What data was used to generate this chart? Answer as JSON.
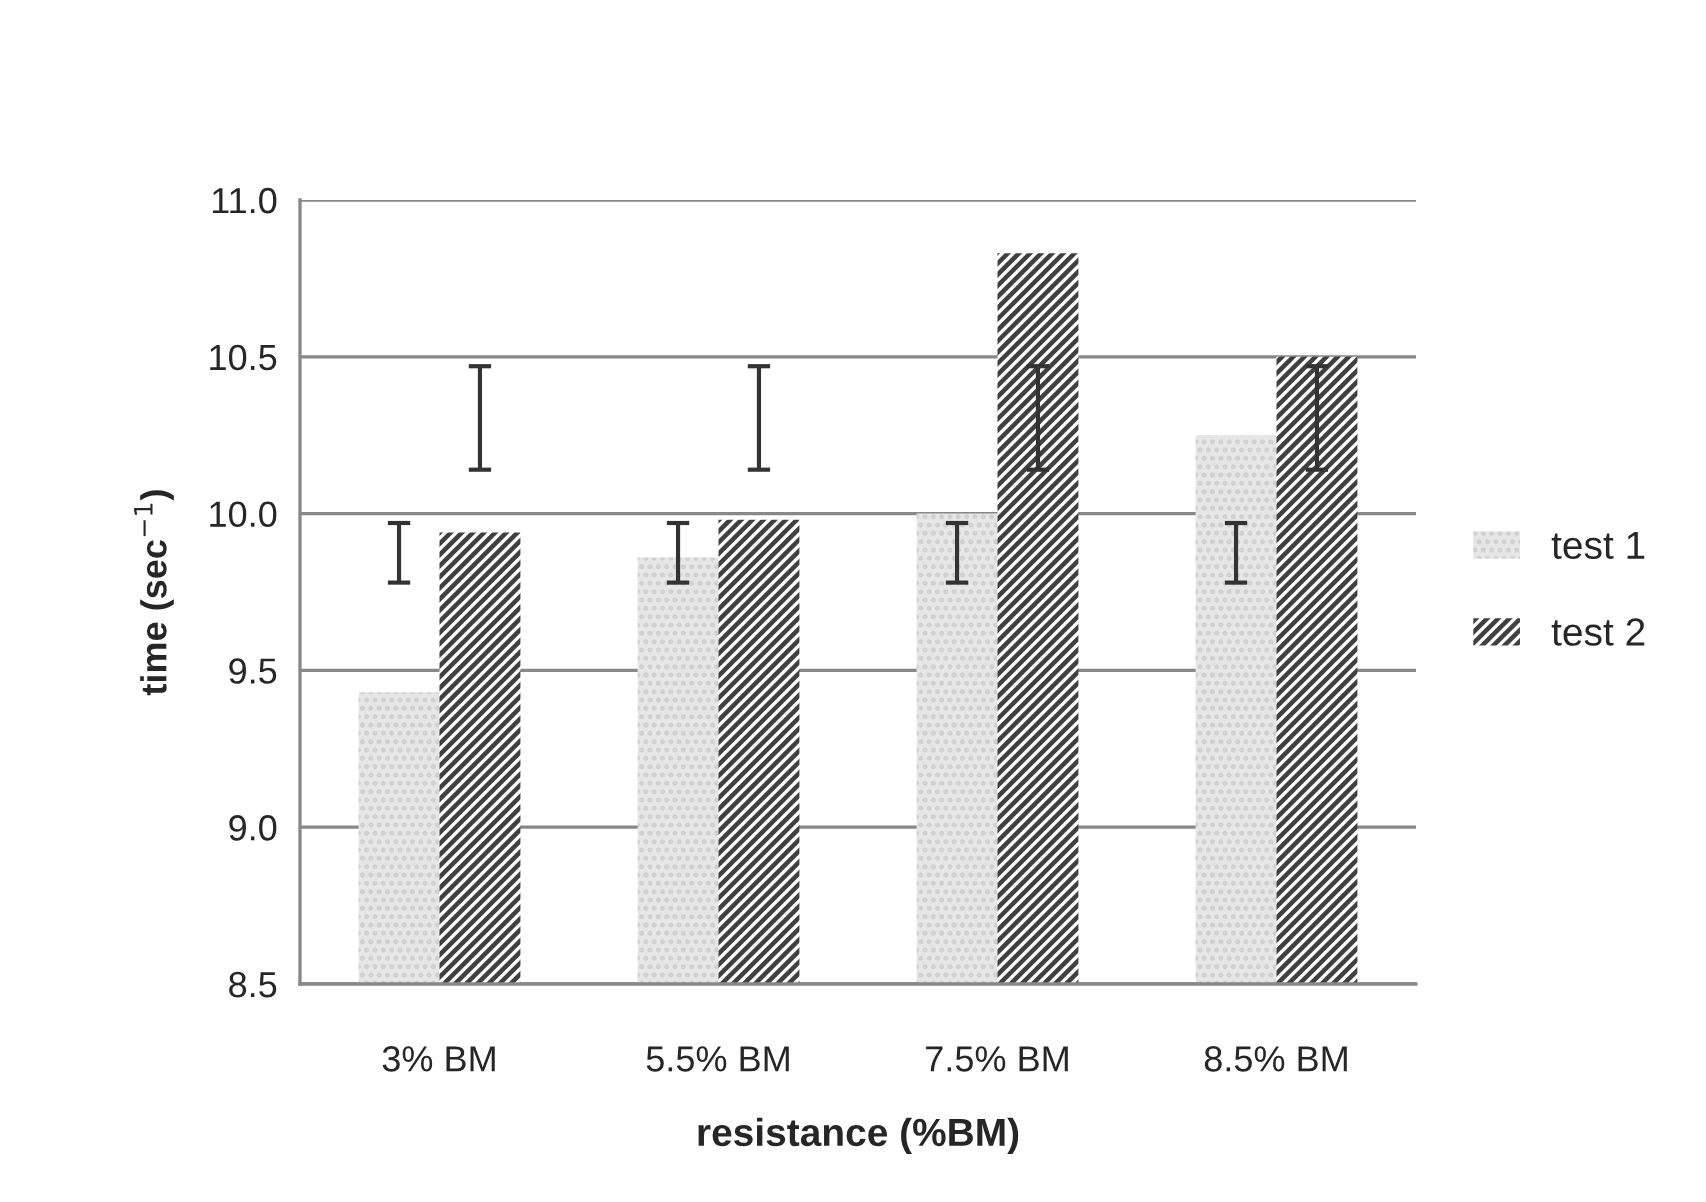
{
  "chart_data": {
    "type": "bar",
    "xlabel": "resistance (%BM)",
    "ylabel": "time (sec$^{−1}$)",
    "categories": [
      "3% BM",
      "5.5% BM",
      "7.5% BM",
      "8.5% BM"
    ],
    "series": [
      {
        "name": "test 1",
        "color": "#e6e6e6",
        "values": [
          9.43,
          9.86,
          10.0,
          10.25
        ],
        "errors": [
          [
            9.78,
            9.97
          ],
          [
            9.78,
            9.97
          ],
          [
            9.78,
            9.97
          ],
          [
            9.78,
            9.97
          ]
        ]
      },
      {
        "name": "test 2",
        "color": "#404040",
        "values": [
          9.94,
          9.98,
          10.83,
          10.5
        ],
        "errors": [
          [
            10.14,
            10.47
          ],
          [
            10.14,
            10.47
          ],
          [
            10.14,
            10.47
          ],
          [
            10.14,
            10.47
          ]
        ]
      }
    ],
    "ylim": [
      8.5,
      11.0
    ],
    "yticks": [
      {
        "value": 8.5,
        "label": "8.5"
      },
      {
        "value": 9.0,
        "label": "9.0"
      },
      {
        "value": 9.5,
        "label": "9.5"
      },
      {
        "value": 10.0,
        "label": "10.0"
      },
      {
        "value": 10.5,
        "label": "10.5"
      },
      {
        "value": 11.0,
        "label": "11.0"
      }
    ],
    "grid": "y",
    "legend": "right"
  }
}
